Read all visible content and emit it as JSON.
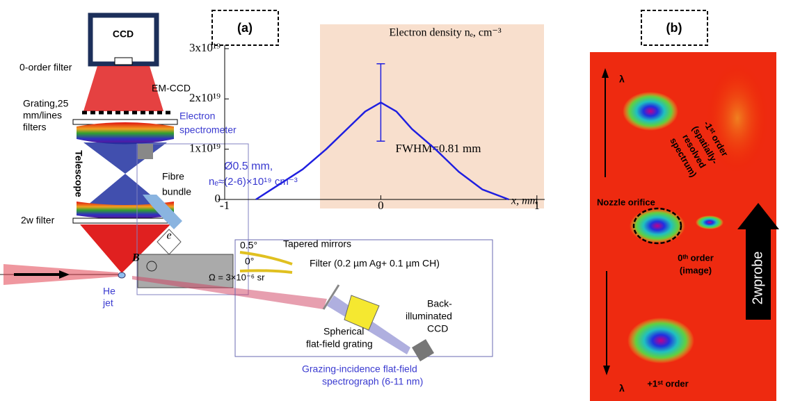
{
  "panel_a": {
    "label": "(a)",
    "ccd": "CCD",
    "zero_order_filter": "0-order filter",
    "em_ccd": "EM-CCD",
    "grating_filters": [
      "Grating,25",
      "mm/lines",
      "filters"
    ],
    "telescope": "Telescope",
    "two_w_filter": "2w filter",
    "he_jet": [
      "He",
      "jet"
    ],
    "electron_spectrometer": [
      "Electron",
      "spectrometer"
    ],
    "fibre_bundle": [
      "Fibre",
      "bundle"
    ],
    "jet_params": [
      "Ø0.5 mm,",
      "nₑ≈(2-6)×10¹⁹ cm⁻³"
    ],
    "magnet": "B",
    "electron": "e",
    "angle_top": "0.5°",
    "angle_bottom": "0°",
    "tapered_mirrors": "Tapered mirrors",
    "filter": "Filter (0.2 µm Ag+ 0.1 µm CH)",
    "solid_angle": "Ω = 3×10⁻⁶ sr",
    "grating": [
      "Spherical",
      "flat-field grating"
    ],
    "back_ccd": [
      "Back-",
      "illuminated",
      "CCD"
    ],
    "spectrograph": [
      "Grazing-incidence flat-field",
      "spectrograph (6-11 nm)"
    ]
  },
  "inset": {
    "type": "line",
    "title": "Electron density nₑ, cm⁻³",
    "x_label": "x, mm",
    "annotation": "FWHM=0.81 mm",
    "x": [
      -0.8,
      -0.65,
      -0.5,
      -0.35,
      -0.2,
      -0.1,
      0,
      0.1,
      0.2,
      0.35,
      0.5,
      0.65,
      0.82
    ],
    "values": [
      0,
      3e+18,
      6e+18,
      1e+19,
      1.45e+19,
      1.75e+19,
      1.93e+19,
      1.75e+19,
      1.4e+19,
      1e+19,
      5.5e+18,
      2e+18,
      0
    ],
    "color": "#1f1fe0",
    "error_bar": {
      "x": 0,
      "value": 1.93e+19,
      "error": 7.7e+18
    },
    "xlim": [
      -1,
      1.05
    ],
    "xticks": [
      -1,
      0,
      1
    ],
    "ylim": [
      0,
      3e+19
    ],
    "yticks": [
      0,
      {
        "value": 1e+19,
        "label": "1x10¹⁹"
      },
      {
        "value": 2e+19,
        "label": "2x10¹⁹"
      },
      {
        "value": 3e+19,
        "label": "3x10¹⁹"
      }
    ]
  },
  "panel_b": {
    "label": "(b)",
    "lambda_top": "λ",
    "minus_first": [
      "-1ˢᵗ order",
      "(spatially-",
      "resolved",
      "spectrum)"
    ],
    "nozzle": "Nozzle orifice",
    "zeroth": [
      "0ᵗʰ order",
      "(image)"
    ],
    "probe": "2wprobe",
    "lambda_bottom": "λ",
    "plus_first": "+1ˢᵗ order"
  }
}
